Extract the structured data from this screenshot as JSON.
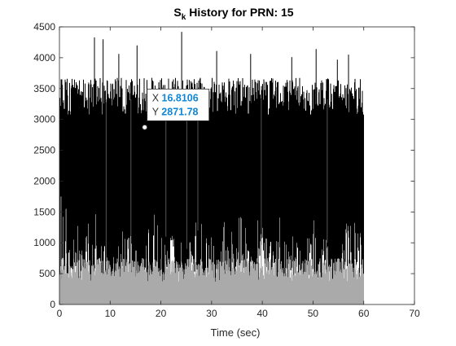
{
  "chart_data": {
    "type": "line",
    "title": {
      "main": "S",
      "subscript": "k",
      "rest": " History for PRN: 15"
    },
    "xlabel": "Time (sec)",
    "ylabel": "",
    "xlim": [
      0,
      70
    ],
    "ylim": [
      0,
      4500
    ],
    "x_ticks": [
      "0",
      "10",
      "20",
      "30",
      "40",
      "50",
      "60",
      "70"
    ],
    "y_ticks": [
      "0",
      "500",
      "1000",
      "1500",
      "2000",
      "2500",
      "3000",
      "3500",
      "4000",
      "4500"
    ],
    "grid": false,
    "series": [
      {
        "color": "#000000",
        "x_range": [
          0,
          60
        ],
        "baseline_range": [
          0,
          1500
        ],
        "typical_peak": 3500,
        "max_peak": 4420,
        "peaks": [
          {
            "x": 6.9,
            "y": 4330
          },
          {
            "x": 8.6,
            "y": 4300
          },
          {
            "x": 11.7,
            "y": 4060
          },
          {
            "x": 15.3,
            "y": 4200
          },
          {
            "x": 24.1,
            "y": 4420
          },
          {
            "x": 31.0,
            "y": 4110
          },
          {
            "x": 37.7,
            "y": 4060
          },
          {
            "x": 45.8,
            "y": 4010
          },
          {
            "x": 50.6,
            "y": 4140
          },
          {
            "x": 54.8,
            "y": 3970
          },
          {
            "x": 57.0,
            "y": 4050
          }
        ],
        "dips": [
          {
            "x": 9.2,
            "y": 200
          },
          {
            "x": 14.1,
            "y": 700
          },
          {
            "x": 21.0,
            "y": 1100
          },
          {
            "x": 25.1,
            "y": 900
          },
          {
            "x": 27.3,
            "y": 1200
          },
          {
            "x": 39.8,
            "y": 300
          },
          {
            "x": 52.8,
            "y": 1000
          }
        ]
      },
      {
        "color": "#aaaaaa",
        "x_range": [
          0,
          60
        ],
        "typical_peak": 650,
        "max_peak": 1800,
        "peaks": [
          {
            "x": 0.3,
            "y": 1750
          },
          {
            "x": 1.3,
            "y": 1550
          },
          {
            "x": 13.4,
            "y": 1050
          },
          {
            "x": 25.7,
            "y": 1000
          },
          {
            "x": 30.4,
            "y": 950
          },
          {
            "x": 50.5,
            "y": 1080
          }
        ]
      }
    ],
    "datatip": {
      "x": 16.8106,
      "y": 2871.78,
      "x_label": "X",
      "y_label": "Y",
      "x_text": "16.8106",
      "y_text": "2871.78"
    },
    "colors": {
      "signal": "#000000",
      "noise": "#aaaaaa",
      "axis": "#262626",
      "datatip_value": "#0f86d6"
    }
  }
}
